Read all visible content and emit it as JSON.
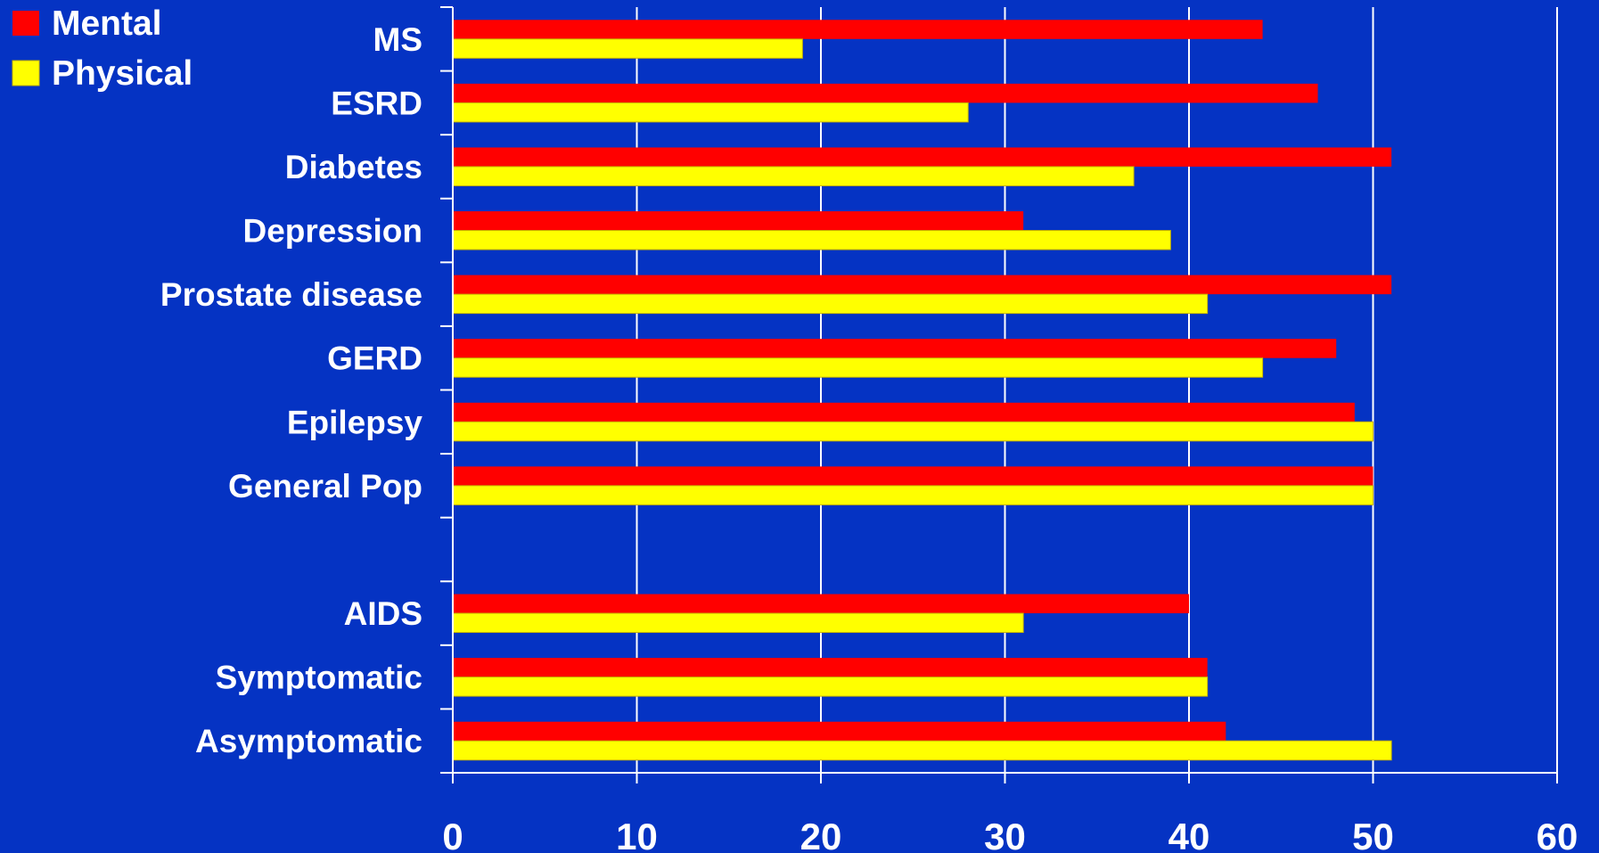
{
  "chart_data": {
    "type": "bar",
    "orientation": "horizontal",
    "categories": [
      "MS",
      "ESRD",
      "Diabetes",
      "Depression",
      "Prostate disease",
      "GERD",
      "Epilepsy",
      "General Pop",
      "",
      "AIDS",
      "Symptomatic",
      "Asymptomatic"
    ],
    "series": [
      {
        "name": "Mental",
        "color": "#ff0000",
        "values": [
          44,
          47,
          51,
          31,
          51,
          48,
          49,
          50,
          null,
          40,
          41,
          42
        ]
      },
      {
        "name": "Physical",
        "color": "#ffff00",
        "values": [
          19,
          28,
          37,
          39,
          41,
          44,
          50,
          50,
          null,
          31,
          41,
          51
        ]
      }
    ],
    "xlim": [
      0,
      60
    ],
    "xticks": [
      0,
      10,
      20,
      30,
      40,
      50,
      60
    ],
    "title": "",
    "xlabel": "",
    "ylabel": "",
    "grid": true,
    "legend": "top-left",
    "background_color": "#0533c3"
  }
}
